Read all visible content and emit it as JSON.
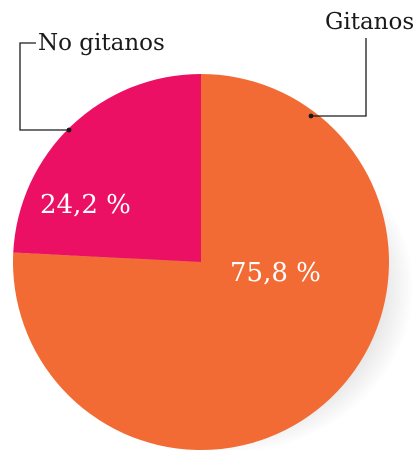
{
  "chart_data": {
    "type": "pie",
    "title": "",
    "start_angle_deg": 0,
    "direction": "clockwise",
    "slices": [
      {
        "name": "Gitanos",
        "value": 75.8,
        "value_label": "75,8 %",
        "color": "#f26b35"
      },
      {
        "name": "No gitanos",
        "value": 24.2,
        "value_label": "24,2 %",
        "color": "#ec1065"
      }
    ],
    "legend": "callout-labels",
    "shadow": true
  }
}
